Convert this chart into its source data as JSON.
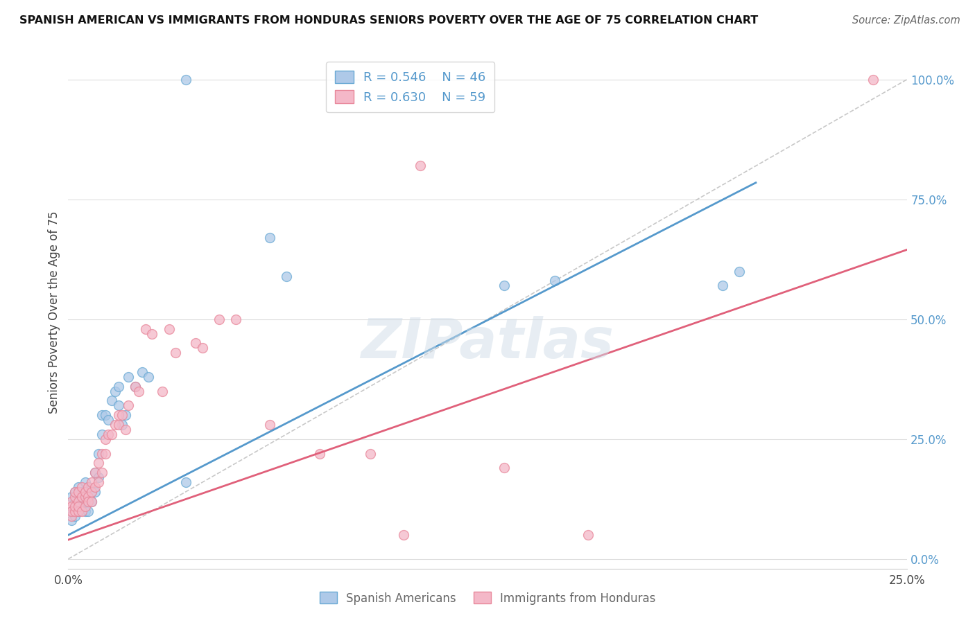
{
  "title": "SPANISH AMERICAN VS IMMIGRANTS FROM HONDURAS SENIORS POVERTY OVER THE AGE OF 75 CORRELATION CHART",
  "source": "Source: ZipAtlas.com",
  "ylabel": "Seniors Poverty Over the Age of 75",
  "xlim": [
    0.0,
    0.25
  ],
  "ylim": [
    -0.02,
    1.05
  ],
  "x_ticks": [
    0.0,
    0.05,
    0.1,
    0.15,
    0.2,
    0.25
  ],
  "x_tick_labels": [
    "0.0%",
    "",
    "",
    "",
    "",
    "25.0%"
  ],
  "y_tick_labels_right": [
    "0.0%",
    "25.0%",
    "50.0%",
    "75.0%",
    "100.0%"
  ],
  "y_ticks_right": [
    0.0,
    0.25,
    0.5,
    0.75,
    1.0
  ],
  "blue_fill_color": "#aec9e8",
  "blue_edge_color": "#6aaad4",
  "pink_fill_color": "#f4b8c8",
  "pink_edge_color": "#e8879a",
  "blue_line_color": "#5599cc",
  "pink_line_color": "#e0607a",
  "dashed_line_color": "#bbbbbb",
  "legend_blue_label": "R = 0.546    N = 46",
  "legend_pink_label": "R = 0.630    N = 59",
  "blue_line_x0": 0.0,
  "blue_line_y0": 0.05,
  "blue_line_x1": 0.205,
  "blue_line_y1": 0.785,
  "pink_line_x0": 0.0,
  "pink_line_y0": 0.04,
  "pink_line_x1": 0.25,
  "pink_line_y1": 0.645,
  "scatter_blue_x": [
    0.001,
    0.001,
    0.001,
    0.002,
    0.002,
    0.002,
    0.002,
    0.003,
    0.003,
    0.003,
    0.004,
    0.004,
    0.005,
    0.005,
    0.005,
    0.006,
    0.006,
    0.006,
    0.007,
    0.007,
    0.008,
    0.008,
    0.009,
    0.009,
    0.01,
    0.01,
    0.011,
    0.012,
    0.013,
    0.014,
    0.015,
    0.015,
    0.016,
    0.017,
    0.018,
    0.02,
    0.022,
    0.024,
    0.035,
    0.06,
    0.065,
    0.13,
    0.145,
    0.195,
    0.2,
    0.035
  ],
  "scatter_blue_y": [
    0.1,
    0.13,
    0.08,
    0.12,
    0.09,
    0.14,
    0.11,
    0.13,
    0.1,
    0.15,
    0.11,
    0.14,
    0.12,
    0.1,
    0.16,
    0.13,
    0.15,
    0.1,
    0.14,
    0.12,
    0.18,
    0.14,
    0.22,
    0.17,
    0.26,
    0.3,
    0.3,
    0.29,
    0.33,
    0.35,
    0.32,
    0.36,
    0.28,
    0.3,
    0.38,
    0.36,
    0.39,
    0.38,
    0.16,
    0.67,
    0.59,
    0.57,
    0.58,
    0.57,
    0.6,
    1.0
  ],
  "scatter_pink_x": [
    0.001,
    0.001,
    0.001,
    0.001,
    0.002,
    0.002,
    0.002,
    0.002,
    0.003,
    0.003,
    0.003,
    0.003,
    0.004,
    0.004,
    0.004,
    0.005,
    0.005,
    0.005,
    0.006,
    0.006,
    0.006,
    0.007,
    0.007,
    0.007,
    0.008,
    0.008,
    0.009,
    0.009,
    0.01,
    0.01,
    0.011,
    0.011,
    0.012,
    0.013,
    0.014,
    0.015,
    0.015,
    0.016,
    0.017,
    0.018,
    0.02,
    0.021,
    0.023,
    0.025,
    0.028,
    0.03,
    0.032,
    0.038,
    0.04,
    0.045,
    0.05,
    0.06,
    0.075,
    0.09,
    0.1,
    0.105,
    0.13,
    0.155,
    0.24
  ],
  "scatter_pink_y": [
    0.09,
    0.12,
    0.11,
    0.1,
    0.1,
    0.13,
    0.11,
    0.14,
    0.12,
    0.1,
    0.14,
    0.11,
    0.13,
    0.1,
    0.15,
    0.13,
    0.11,
    0.14,
    0.13,
    0.12,
    0.15,
    0.14,
    0.12,
    0.16,
    0.15,
    0.18,
    0.16,
    0.2,
    0.18,
    0.22,
    0.22,
    0.25,
    0.26,
    0.26,
    0.28,
    0.28,
    0.3,
    0.3,
    0.27,
    0.32,
    0.36,
    0.35,
    0.48,
    0.47,
    0.35,
    0.48,
    0.43,
    0.45,
    0.44,
    0.5,
    0.5,
    0.28,
    0.22,
    0.22,
    0.05,
    0.82,
    0.19,
    0.05,
    1.0
  ],
  "watermark_text": "ZIPatlas",
  "background_color": "#ffffff",
  "grid_color": "#dddddd"
}
